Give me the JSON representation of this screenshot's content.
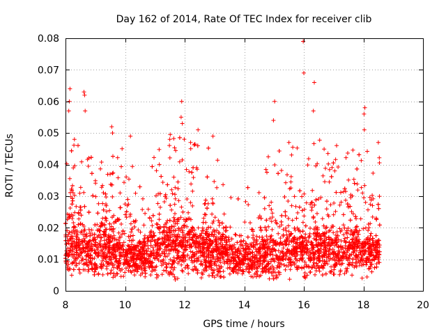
{
  "chart_data": {
    "type": "scatter",
    "title": "Day 162 of 2014, Rate Of TEC Index for receiver clib",
    "xlabel": "GPS time / hours",
    "ylabel": "ROTI / TECUs",
    "xlim": [
      8,
      20
    ],
    "ylim": [
      0,
      0.08
    ],
    "x_ticks": [
      8,
      10,
      12,
      14,
      16,
      18,
      20
    ],
    "y_ticks": [
      0,
      0.01,
      0.02,
      0.03,
      0.04,
      0.05,
      0.06,
      0.07,
      0.08
    ],
    "x_tick_labels": [
      "8",
      "10",
      "12",
      "14",
      "16",
      "18",
      "20"
    ],
    "y_tick_labels": [
      "0",
      "0.01",
      "0.02",
      "0.03",
      "0.04",
      "0.05",
      "0.06",
      "0.07",
      "0.08"
    ],
    "grid": true,
    "marker": "+",
    "marker_color": "#ff0000",
    "data_range_x": [
      8.0,
      18.55
    ],
    "series": [
      {
        "name": "ROTI",
        "outliers": [
          {
            "x": 8.15,
            "y": 0.064
          },
          {
            "x": 8.13,
            "y": 0.06
          },
          {
            "x": 8.11,
            "y": 0.057
          },
          {
            "x": 8.62,
            "y": 0.063
          },
          {
            "x": 8.64,
            "y": 0.062
          },
          {
            "x": 8.66,
            "y": 0.057
          },
          {
            "x": 9.55,
            "y": 0.052
          },
          {
            "x": 9.58,
            "y": 0.05
          },
          {
            "x": 10.18,
            "y": 0.049
          },
          {
            "x": 11.9,
            "y": 0.06
          },
          {
            "x": 11.88,
            "y": 0.055
          },
          {
            "x": 11.92,
            "y": 0.053
          },
          {
            "x": 12.45,
            "y": 0.051
          },
          {
            "x": 12.95,
            "y": 0.049
          },
          {
            "x": 15.02,
            "y": 0.06
          },
          {
            "x": 14.98,
            "y": 0.054
          },
          {
            "x": 15.5,
            "y": 0.047
          },
          {
            "x": 15.98,
            "y": 0.079
          },
          {
            "x": 16.0,
            "y": 0.069
          },
          {
            "x": 16.35,
            "y": 0.066
          },
          {
            "x": 16.32,
            "y": 0.057
          },
          {
            "x": 18.05,
            "y": 0.058
          },
          {
            "x": 18.02,
            "y": 0.056
          },
          {
            "x": 18.03,
            "y": 0.051
          },
          {
            "x": 18.5,
            "y": 0.047
          },
          {
            "x": 11.5,
            "y": 0.048
          },
          {
            "x": 8.3,
            "y": 0.048
          },
          {
            "x": 9.9,
            "y": 0.045
          },
          {
            "x": 12.2,
            "y": 0.047
          },
          {
            "x": 17.1,
            "y": 0.046
          }
        ],
        "envelope": [
          {
            "x": 8.0,
            "low": 0.006,
            "high": 0.032,
            "center": 0.014
          },
          {
            "x": 8.5,
            "low": 0.005,
            "high": 0.033,
            "center": 0.014
          },
          {
            "x": 9.0,
            "low": 0.005,
            "high": 0.03,
            "center": 0.013
          },
          {
            "x": 9.5,
            "low": 0.005,
            "high": 0.032,
            "center": 0.014
          },
          {
            "x": 10.0,
            "low": 0.004,
            "high": 0.028,
            "center": 0.011
          },
          {
            "x": 10.5,
            "low": 0.005,
            "high": 0.022,
            "center": 0.011
          },
          {
            "x": 11.0,
            "low": 0.005,
            "high": 0.03,
            "center": 0.013
          },
          {
            "x": 11.5,
            "low": 0.005,
            "high": 0.035,
            "center": 0.015
          },
          {
            "x": 12.0,
            "low": 0.005,
            "high": 0.035,
            "center": 0.015
          },
          {
            "x": 12.5,
            "low": 0.005,
            "high": 0.034,
            "center": 0.014
          },
          {
            "x": 13.0,
            "low": 0.004,
            "high": 0.03,
            "center": 0.013
          },
          {
            "x": 13.5,
            "low": 0.005,
            "high": 0.02,
            "center": 0.011
          },
          {
            "x": 14.0,
            "low": 0.005,
            "high": 0.017,
            "center": 0.01
          },
          {
            "x": 14.5,
            "low": 0.004,
            "high": 0.024,
            "center": 0.011
          },
          {
            "x": 15.0,
            "low": 0.004,
            "high": 0.03,
            "center": 0.012
          },
          {
            "x": 15.5,
            "low": 0.005,
            "high": 0.03,
            "center": 0.013
          },
          {
            "x": 16.0,
            "low": 0.005,
            "high": 0.033,
            "center": 0.013
          },
          {
            "x": 16.5,
            "low": 0.005,
            "high": 0.033,
            "center": 0.013
          },
          {
            "x": 17.0,
            "low": 0.005,
            "high": 0.032,
            "center": 0.013
          },
          {
            "x": 17.5,
            "low": 0.005,
            "high": 0.032,
            "center": 0.013
          },
          {
            "x": 18.0,
            "low": 0.005,
            "high": 0.033,
            "center": 0.013
          },
          {
            "x": 18.55,
            "low": 0.006,
            "high": 0.028,
            "center": 0.012
          }
        ]
      }
    ]
  }
}
